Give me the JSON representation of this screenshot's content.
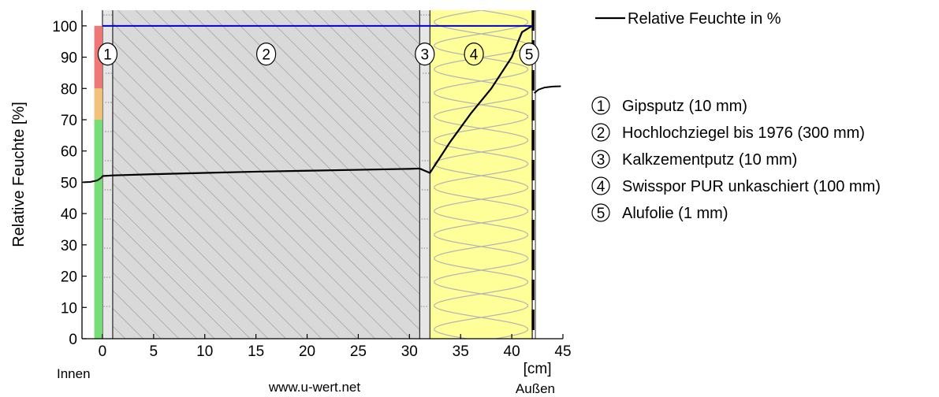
{
  "chart_data": {
    "type": "line",
    "title": "",
    "ylabel": "Relative Feuchte [%]",
    "xlabel": "[cm]",
    "x_unit": "[cm]",
    "xlim": [
      -2.0,
      45.0
    ],
    "ylim": [
      0,
      105
    ],
    "xticks": [
      0,
      5,
      10,
      15,
      20,
      25,
      30,
      35,
      40,
      45
    ],
    "yticks": [
      0,
      10,
      20,
      30,
      40,
      50,
      60,
      70,
      80,
      90,
      100
    ],
    "grid": false,
    "legend_position": "top-right",
    "inside_label": "Innen",
    "outside_label": "Außen",
    "watermark": "www.u-wert.net",
    "series": [
      {
        "name": "Relative Feuchte in %",
        "color": "#000000",
        "x": [
          0,
          1,
          5,
          10,
          15,
          20,
          25,
          30,
          31,
          32,
          34,
          36,
          38,
          40,
          41,
          42
        ],
        "y": [
          52.0,
          52.2,
          52.6,
          53.0,
          53.4,
          53.7,
          54.0,
          54.3,
          54.4,
          53.0,
          63.0,
          72.0,
          80.0,
          90.0,
          98.0,
          100.0
        ]
      },
      {
        "name": "",
        "color": "#0000cc",
        "x": [
          0,
          42
        ],
        "y": [
          100,
          100
        ]
      }
    ],
    "air_curves": [
      {
        "side": "inside",
        "x": [
          -1.9,
          -1.2,
          -0.5,
          -0.1,
          0
        ],
        "y": [
          50.0,
          50.1,
          50.6,
          51.5,
          52.0
        ]
      },
      {
        "side": "outside",
        "x": [
          42.2,
          42.6,
          43.2,
          44.0,
          44.8
        ],
        "y": [
          78.5,
          79.6,
          80.3,
          80.6,
          80.7
        ]
      }
    ],
    "humidity_scale": [
      {
        "from": 0,
        "to": 70,
        "color": "#77dd77"
      },
      {
        "from": 70,
        "to": 80,
        "color": "#f2c27a"
      },
      {
        "from": 80,
        "to": 100,
        "color": "#ee7777"
      }
    ],
    "layers": [
      {
        "id": "1",
        "label": "Gipsputz (10 mm)",
        "from": 0,
        "to": 1,
        "fill": "#e6e6e6",
        "pattern": "plaster"
      },
      {
        "id": "2",
        "label": "Hochlochziegel bis 1976 (300 mm)",
        "from": 1,
        "to": 31,
        "fill": "#d9d9d9",
        "pattern": "hatch"
      },
      {
        "id": "3",
        "label": "Kalkzementputz (10 mm)",
        "from": 31,
        "to": 32,
        "fill": "#e6e6e6",
        "pattern": "plaster"
      },
      {
        "id": "4",
        "label": "Swisspor PUR unkaschiert (100 mm)",
        "from": 32,
        "to": 42,
        "fill": "#ffff99",
        "pattern": "insulation"
      },
      {
        "id": "5",
        "label": "Alufolie (1 mm)",
        "from": 42,
        "to": 42.1,
        "fill": "#ffffff",
        "pattern": "foil"
      }
    ]
  }
}
